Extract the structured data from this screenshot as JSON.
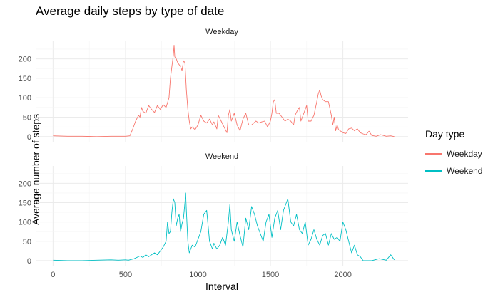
{
  "chart_data": {
    "type": "line",
    "title": "Average daily steps by type of date",
    "xlabel": "Interval",
    "ylabel": "Average number of steps",
    "xlim": [
      -120,
      2450
    ],
    "ylim": [
      -15,
      245
    ],
    "x_ticks": [
      0,
      500,
      1000,
      1500,
      2000
    ],
    "y_ticks": [
      0,
      50,
      100,
      150,
      200
    ],
    "grid": true,
    "legend": {
      "title": "Day type",
      "position": "right"
    },
    "panels": [
      {
        "label": "Weekday",
        "series": "Weekday",
        "color": "#F8766D",
        "points": [
          [
            0,
            2
          ],
          [
            100,
            1
          ],
          [
            200,
            1
          ],
          [
            300,
            0
          ],
          [
            400,
            1
          ],
          [
            500,
            1
          ],
          [
            530,
            2
          ],
          [
            550,
            20
          ],
          [
            570,
            40
          ],
          [
            590,
            55
          ],
          [
            600,
            50
          ],
          [
            610,
            75
          ],
          [
            620,
            65
          ],
          [
            640,
            60
          ],
          [
            660,
            80
          ],
          [
            680,
            70
          ],
          [
            700,
            62
          ],
          [
            720,
            80
          ],
          [
            740,
            70
          ],
          [
            760,
            82
          ],
          [
            780,
            75
          ],
          [
            800,
            100
          ],
          [
            810,
            150
          ],
          [
            820,
            180
          ],
          [
            830,
            210
          ],
          [
            835,
            235
          ],
          [
            840,
            205
          ],
          [
            850,
            200
          ],
          [
            860,
            190
          ],
          [
            870,
            185
          ],
          [
            880,
            180
          ],
          [
            890,
            170
          ],
          [
            900,
            195
          ],
          [
            910,
            190
          ],
          [
            920,
            120
          ],
          [
            930,
            70
          ],
          [
            940,
            40
          ],
          [
            950,
            20
          ],
          [
            960,
            25
          ],
          [
            980,
            18
          ],
          [
            1000,
            30
          ],
          [
            1020,
            55
          ],
          [
            1040,
            40
          ],
          [
            1060,
            35
          ],
          [
            1080,
            45
          ],
          [
            1100,
            30
          ],
          [
            1110,
            38
          ],
          [
            1130,
            20
          ],
          [
            1140,
            55
          ],
          [
            1160,
            40
          ],
          [
            1180,
            25
          ],
          [
            1200,
            10
          ],
          [
            1210,
            55
          ],
          [
            1220,
            70
          ],
          [
            1230,
            40
          ],
          [
            1250,
            60
          ],
          [
            1270,
            30
          ],
          [
            1290,
            15
          ],
          [
            1310,
            45
          ],
          [
            1330,
            60
          ],
          [
            1350,
            30
          ],
          [
            1370,
            30
          ],
          [
            1400,
            40
          ],
          [
            1420,
            35
          ],
          [
            1440,
            38
          ],
          [
            1460,
            40
          ],
          [
            1480,
            25
          ],
          [
            1500,
            40
          ],
          [
            1510,
            60
          ],
          [
            1520,
            90
          ],
          [
            1530,
            95
          ],
          [
            1540,
            60
          ],
          [
            1560,
            60
          ],
          [
            1580,
            50
          ],
          [
            1600,
            40
          ],
          [
            1620,
            45
          ],
          [
            1640,
            40
          ],
          [
            1660,
            30
          ],
          [
            1670,
            55
          ],
          [
            1690,
            70
          ],
          [
            1700,
            75
          ],
          [
            1710,
            40
          ],
          [
            1730,
            60
          ],
          [
            1750,
            80
          ],
          [
            1760,
            40
          ],
          [
            1780,
            40
          ],
          [
            1800,
            55
          ],
          [
            1820,
            90
          ],
          [
            1830,
            110
          ],
          [
            1840,
            120
          ],
          [
            1850,
            105
          ],
          [
            1860,
            95
          ],
          [
            1880,
            90
          ],
          [
            1900,
            90
          ],
          [
            1920,
            55
          ],
          [
            1930,
            30
          ],
          [
            1940,
            50
          ],
          [
            1950,
            15
          ],
          [
            1960,
            30
          ],
          [
            1970,
            18
          ],
          [
            2000,
            10
          ],
          [
            2020,
            8
          ],
          [
            2040,
            20
          ],
          [
            2060,
            22
          ],
          [
            2080,
            15
          ],
          [
            2100,
            20
          ],
          [
            2120,
            10
          ],
          [
            2140,
            7
          ],
          [
            2160,
            5
          ],
          [
            2180,
            14
          ],
          [
            2200,
            3
          ],
          [
            2230,
            1
          ],
          [
            2260,
            5
          ],
          [
            2300,
            1
          ],
          [
            2330,
            2
          ],
          [
            2355,
            0
          ]
        ]
      },
      {
        "label": "Weekend",
        "series": "Weekend",
        "color": "#00BFC4",
        "points": [
          [
            0,
            1
          ],
          [
            100,
            0
          ],
          [
            200,
            0
          ],
          [
            300,
            1
          ],
          [
            400,
            2
          ],
          [
            450,
            1
          ],
          [
            500,
            2
          ],
          [
            520,
            1
          ],
          [
            560,
            5
          ],
          [
            600,
            12
          ],
          [
            620,
            8
          ],
          [
            640,
            15
          ],
          [
            660,
            10
          ],
          [
            700,
            20
          ],
          [
            720,
            15
          ],
          [
            740,
            25
          ],
          [
            760,
            35
          ],
          [
            780,
            50
          ],
          [
            790,
            100
          ],
          [
            800,
            70
          ],
          [
            810,
            75
          ],
          [
            820,
            125
          ],
          [
            830,
            160
          ],
          [
            840,
            150
          ],
          [
            850,
            90
          ],
          [
            860,
            110
          ],
          [
            870,
            120
          ],
          [
            880,
            75
          ],
          [
            890,
            95
          ],
          [
            900,
            110
          ],
          [
            910,
            150
          ],
          [
            915,
            175
          ],
          [
            920,
            130
          ],
          [
            930,
            50
          ],
          [
            940,
            20
          ],
          [
            960,
            40
          ],
          [
            980,
            35
          ],
          [
            1000,
            55
          ],
          [
            1020,
            75
          ],
          [
            1040,
            120
          ],
          [
            1060,
            130
          ],
          [
            1080,
            50
          ],
          [
            1100,
            30
          ],
          [
            1110,
            45
          ],
          [
            1130,
            30
          ],
          [
            1150,
            40
          ],
          [
            1170,
            60
          ],
          [
            1190,
            40
          ],
          [
            1210,
            100
          ],
          [
            1220,
            145
          ],
          [
            1230,
            80
          ],
          [
            1250,
            50
          ],
          [
            1270,
            100
          ],
          [
            1290,
            65
          ],
          [
            1310,
            35
          ],
          [
            1330,
            110
          ],
          [
            1350,
            80
          ],
          [
            1370,
            140
          ],
          [
            1390,
            120
          ],
          [
            1410,
            90
          ],
          [
            1430,
            70
          ],
          [
            1450,
            50
          ],
          [
            1470,
            100
          ],
          [
            1490,
            120
          ],
          [
            1510,
            60
          ],
          [
            1530,
            110
          ],
          [
            1550,
            130
          ],
          [
            1570,
            80
          ],
          [
            1590,
            130
          ],
          [
            1610,
            150
          ],
          [
            1620,
            160
          ],
          [
            1640,
            100
          ],
          [
            1660,
            90
          ],
          [
            1680,
            120
          ],
          [
            1700,
            80
          ],
          [
            1720,
            70
          ],
          [
            1740,
            100
          ],
          [
            1760,
            40
          ],
          [
            1780,
            55
          ],
          [
            1800,
            80
          ],
          [
            1820,
            55
          ],
          [
            1840,
            40
          ],
          [
            1860,
            65
          ],
          [
            1880,
            70
          ],
          [
            1900,
            40
          ],
          [
            1920,
            70
          ],
          [
            1940,
            55
          ],
          [
            1960,
            60
          ],
          [
            1980,
            50
          ],
          [
            2000,
            100
          ],
          [
            2020,
            80
          ],
          [
            2040,
            50
          ],
          [
            2060,
            20
          ],
          [
            2080,
            40
          ],
          [
            2100,
            15
          ],
          [
            2120,
            10
          ],
          [
            2140,
            0
          ],
          [
            2160,
            0
          ],
          [
            2200,
            0
          ],
          [
            2250,
            5
          ],
          [
            2300,
            1
          ],
          [
            2330,
            15
          ],
          [
            2355,
            2
          ]
        ]
      }
    ]
  }
}
